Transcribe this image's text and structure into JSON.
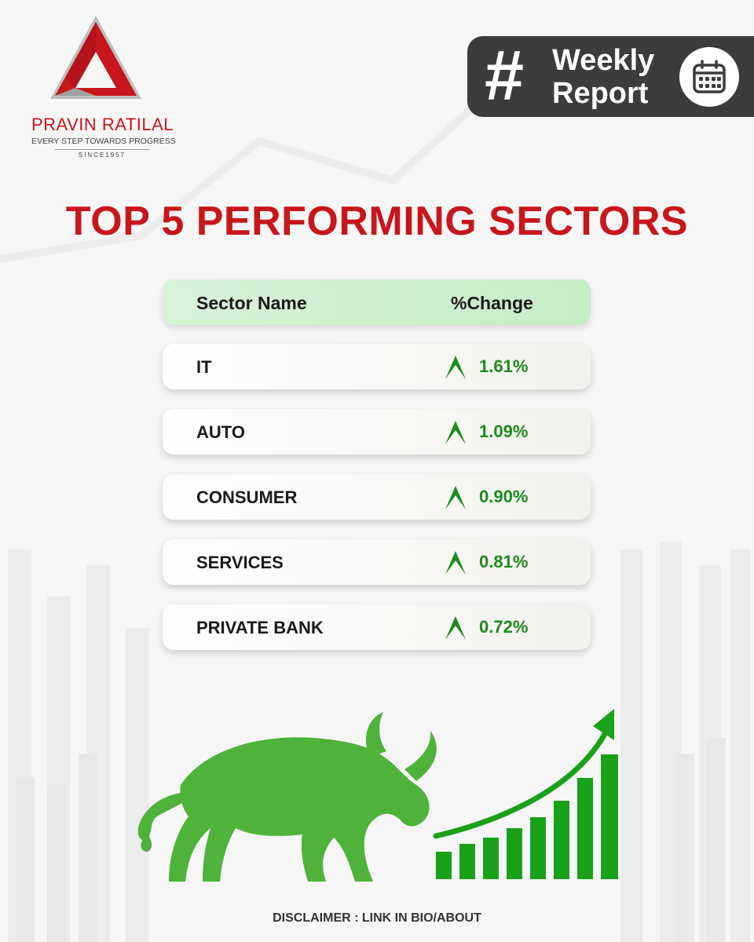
{
  "brand": {
    "name": "PRAVIN RATILAL",
    "tagline": "EVERY STEP TOWARDS PROGRESS",
    "since": "SINCE1957",
    "color": "#c8161d"
  },
  "badge": {
    "hash": "#",
    "line1": "Weekly",
    "line2": "Report",
    "icon": "calendar-icon"
  },
  "title": "TOP 5 PERFORMING SECTORS",
  "table": {
    "headers": {
      "sector": "Sector Name",
      "change": "%Change"
    },
    "rows": [
      {
        "sector": "IT",
        "change": "1.61%"
      },
      {
        "sector": "AUTO",
        "change": "1.09%"
      },
      {
        "sector": "CONSUMER",
        "change": "0.90%"
      },
      {
        "sector": "SERVICES",
        "change": "0.81%"
      },
      {
        "sector": "PRIVATE BANK",
        "change": "0.72%"
      }
    ],
    "up_color": "#1d8a1d"
  },
  "disclaimer": "DISCLAIMER : LINK IN BIO/ABOUT"
}
